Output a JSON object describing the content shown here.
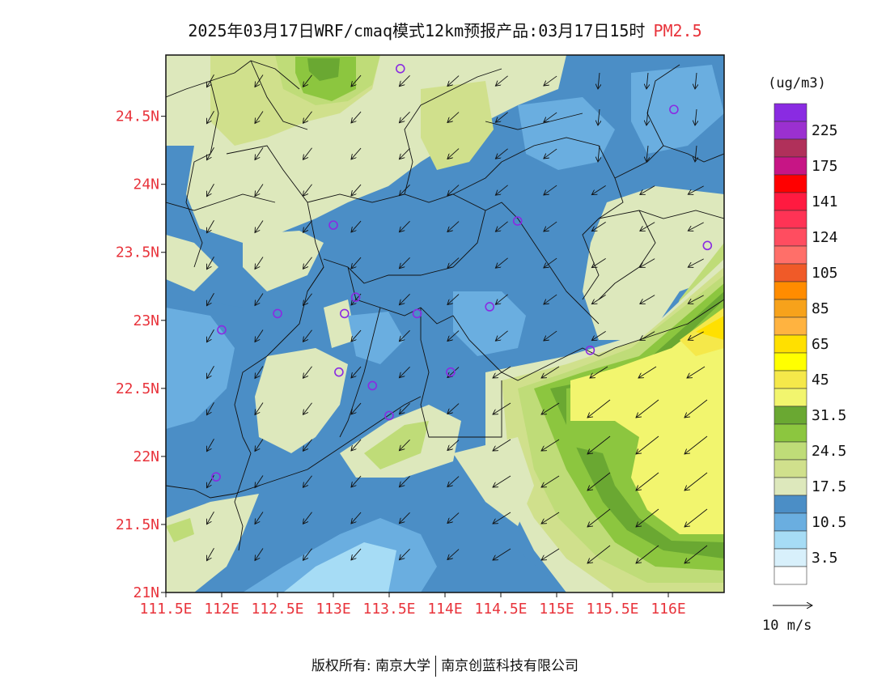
{
  "title": {
    "main": "2025年03月17日WRF/cmaq模式12km预报产品:03月17日15时",
    "pollutant": "PM2.5"
  },
  "map": {
    "lat_labels": [
      "24.5N",
      "24N",
      "23.5N",
      "23N",
      "22.5N",
      "22N",
      "21.5N",
      "21N"
    ],
    "lon_labels": [
      "111.5E",
      "112E",
      "112.5E",
      "113E",
      "113.5E",
      "114E",
      "114.5E",
      "115E",
      "115.5E",
      "116E"
    ],
    "lon_range": [
      111.5,
      116.5
    ],
    "lat_range": [
      21.0,
      24.95
    ]
  },
  "legend": {
    "unit": "(ug/m3)",
    "levels": [
      {
        "label": "",
        "color": "#8a2be2"
      },
      {
        "label": "225",
        "color": "#9b30d0"
      },
      {
        "label": "",
        "color": "#b0305a"
      },
      {
        "label": "175",
        "color": "#c71585"
      },
      {
        "label": "",
        "color": "#ff0000"
      },
      {
        "label": "141",
        "color": "#ff1a40"
      },
      {
        "label": "",
        "color": "#ff3355"
      },
      {
        "label": "124",
        "color": "#ff4d60"
      },
      {
        "label": "",
        "color": "#ff6f69"
      },
      {
        "label": "105",
        "color": "#f05a28"
      },
      {
        "label": "",
        "color": "#ff8c00"
      },
      {
        "label": "85",
        "color": "#f7a21b"
      },
      {
        "label": "",
        "color": "#ffb340"
      },
      {
        "label": "65",
        "color": "#ffe000"
      },
      {
        "label": "",
        "color": "#ffff00"
      },
      {
        "label": "45",
        "color": "#f5e84a"
      },
      {
        "label": "",
        "color": "#f2f56e"
      },
      {
        "label": "31.5",
        "color": "#6aa832"
      },
      {
        "label": "",
        "color": "#8cc63f"
      },
      {
        "label": "24.5",
        "color": "#bfdc78"
      },
      {
        "label": "",
        "color": "#d0e08c"
      },
      {
        "label": "17.5",
        "color": "#dde8bc"
      },
      {
        "label": "",
        "color": "#4b8ec6"
      },
      {
        "label": "10.5",
        "color": "#6aaee0"
      },
      {
        "label": "",
        "color": "#a6dcf5"
      },
      {
        "label": "3.5",
        "color": "#d8f0fb"
      },
      {
        "label": "",
        "color": "#ffffff"
      }
    ],
    "wind_scale_label": "10 m/s"
  },
  "stations": [
    {
      "lon": 113.6,
      "lat": 24.85
    },
    {
      "lon": 116.05,
      "lat": 24.55
    },
    {
      "lon": 113.0,
      "lat": 23.7
    },
    {
      "lon": 114.65,
      "lat": 23.73
    },
    {
      "lon": 116.35,
      "lat": 23.55
    },
    {
      "lon": 112.5,
      "lat": 23.05
    },
    {
      "lon": 113.1,
      "lat": 23.05
    },
    {
      "lon": 113.2,
      "lat": 23.17
    },
    {
      "lon": 113.75,
      "lat": 23.05
    },
    {
      "lon": 114.4,
      "lat": 23.1
    },
    {
      "lon": 112.0,
      "lat": 22.93
    },
    {
      "lon": 113.05,
      "lat": 22.62
    },
    {
      "lon": 113.35,
      "lat": 22.52
    },
    {
      "lon": 114.05,
      "lat": 22.62
    },
    {
      "lon": 115.3,
      "lat": 22.78
    },
    {
      "lon": 113.5,
      "lat": 22.3
    },
    {
      "lon": 111.95,
      "lat": 21.85
    }
  ],
  "copyright": {
    "left": "版权所有: 南京大学",
    "right": "南京创蓝科技有限公司"
  }
}
